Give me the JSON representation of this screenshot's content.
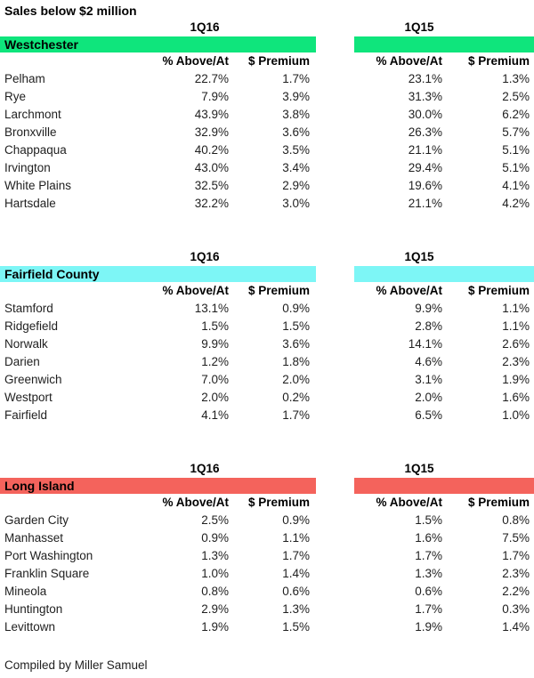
{
  "title": "Sales below $2 million",
  "footer": "Compiled by Miller Samuel",
  "labels": {
    "q1": "1Q16",
    "q2": "1Q15",
    "above": "% Above/At",
    "premium": "$ Premium"
  },
  "sections": [
    {
      "name": "Westchester",
      "color": "#0FE57C",
      "rows": [
        {
          "place": "Pelham",
          "q16_above": "22.7%",
          "q16_premium": "1.7%",
          "q15_above": "23.1%",
          "q15_premium": "1.3%"
        },
        {
          "place": "Rye",
          "q16_above": "7.9%",
          "q16_premium": "3.9%",
          "q15_above": "31.3%",
          "q15_premium": "2.5%"
        },
        {
          "place": "Larchmont",
          "q16_above": "43.9%",
          "q16_premium": "3.8%",
          "q15_above": "30.0%",
          "q15_premium": "6.2%"
        },
        {
          "place": "Bronxville",
          "q16_above": "32.9%",
          "q16_premium": "3.6%",
          "q15_above": "26.3%",
          "q15_premium": "5.7%"
        },
        {
          "place": "Chappaqua",
          "q16_above": "40.2%",
          "q16_premium": "3.5%",
          "q15_above": "21.1%",
          "q15_premium": "5.1%"
        },
        {
          "place": "Irvington",
          "q16_above": "43.0%",
          "q16_premium": "3.4%",
          "q15_above": "29.4%",
          "q15_premium": "5.1%"
        },
        {
          "place": "White Plains",
          "q16_above": "32.5%",
          "q16_premium": "2.9%",
          "q15_above": "19.6%",
          "q15_premium": "4.1%"
        },
        {
          "place": "Hartsdale",
          "q16_above": "32.2%",
          "q16_premium": "3.0%",
          "q15_above": "21.1%",
          "q15_premium": "4.2%"
        }
      ]
    },
    {
      "name": "Fairfield County",
      "color": "#7DF6F6",
      "rows": [
        {
          "place": "Stamford",
          "q16_above": "13.1%",
          "q16_premium": "0.9%",
          "q15_above": "9.9%",
          "q15_premium": "1.1%"
        },
        {
          "place": "Ridgefield",
          "q16_above": "1.5%",
          "q16_premium": "1.5%",
          "q15_above": "2.8%",
          "q15_premium": "1.1%"
        },
        {
          "place": "Norwalk",
          "q16_above": "9.9%",
          "q16_premium": "3.6%",
          "q15_above": "14.1%",
          "q15_premium": "2.6%"
        },
        {
          "place": "Darien",
          "q16_above": "1.2%",
          "q16_premium": "1.8%",
          "q15_above": "4.6%",
          "q15_premium": "2.3%"
        },
        {
          "place": "Greenwich",
          "q16_above": "7.0%",
          "q16_premium": "2.0%",
          "q15_above": "3.1%",
          "q15_premium": "1.9%"
        },
        {
          "place": "Westport",
          "q16_above": "2.0%",
          "q16_premium": "0.2%",
          "q15_above": "2.0%",
          "q15_premium": "1.6%"
        },
        {
          "place": "Fairfield",
          "q16_above": "4.1%",
          "q16_premium": "1.7%",
          "q15_above": "6.5%",
          "q15_premium": "1.0%"
        }
      ]
    },
    {
      "name": "Long Island",
      "color": "#F4635C",
      "rows": [
        {
          "place": "Garden City",
          "q16_above": "2.5%",
          "q16_premium": "0.9%",
          "q15_above": "1.5%",
          "q15_premium": "0.8%"
        },
        {
          "place": "Manhasset",
          "q16_above": "0.9%",
          "q16_premium": "1.1%",
          "q15_above": "1.6%",
          "q15_premium": "7.5%"
        },
        {
          "place": "Port Washington",
          "q16_above": "1.3%",
          "q16_premium": "1.7%",
          "q15_above": "1.7%",
          "q15_premium": "1.7%"
        },
        {
          "place": "Franklin Square",
          "q16_above": "1.0%",
          "q16_premium": "1.4%",
          "q15_above": "1.3%",
          "q15_premium": "2.3%"
        },
        {
          "place": "Mineola",
          "q16_above": "0.8%",
          "q16_premium": "0.6%",
          "q15_above": "0.6%",
          "q15_premium": "2.2%"
        },
        {
          "place": "Huntington",
          "q16_above": "2.9%",
          "q16_premium": "1.3%",
          "q15_above": "1.7%",
          "q15_premium": "0.3%"
        },
        {
          "place": "Levittown",
          "q16_above": "1.9%",
          "q16_premium": "1.5%",
          "q15_above": "1.9%",
          "q15_premium": "1.4%"
        }
      ]
    }
  ]
}
